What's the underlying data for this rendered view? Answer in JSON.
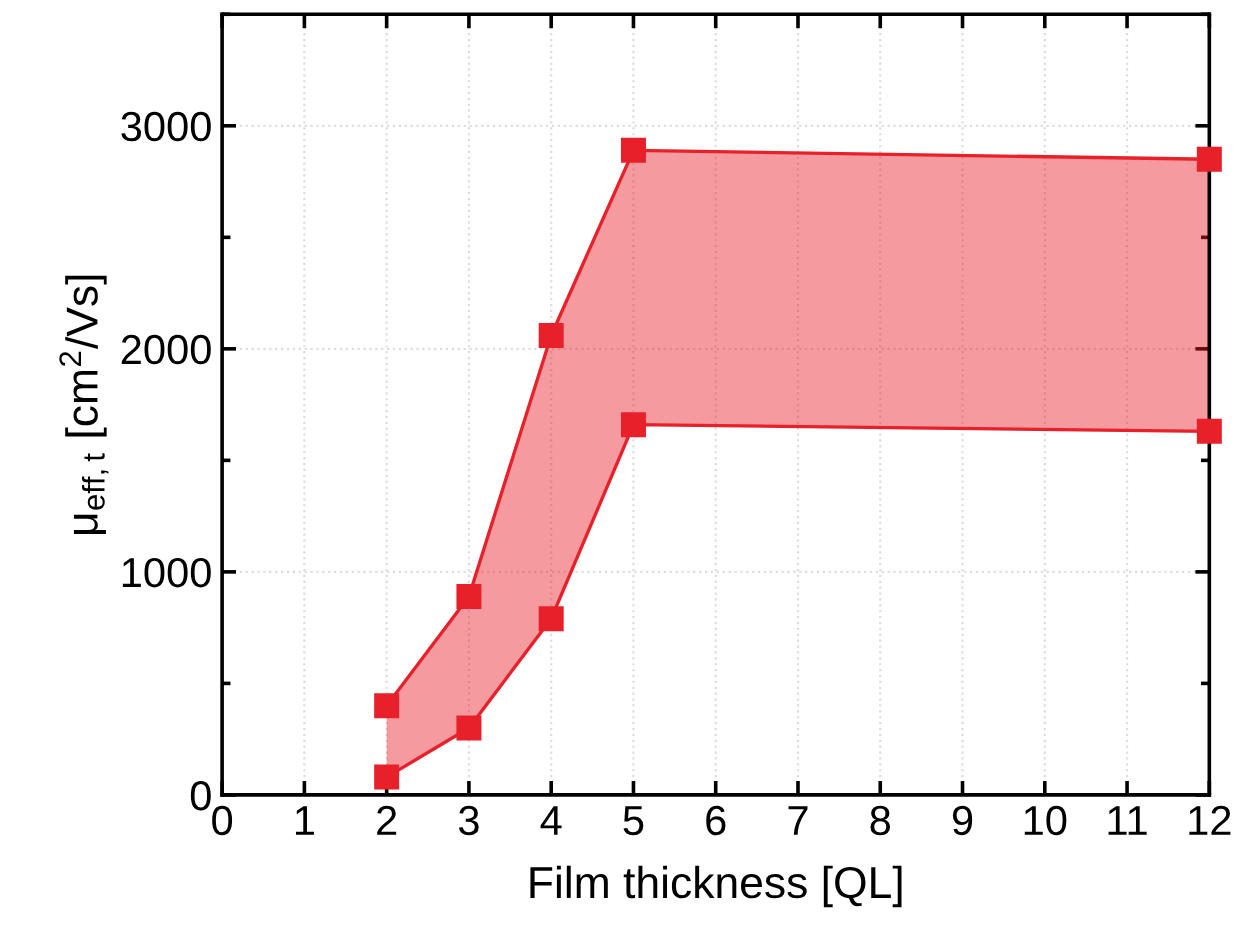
{
  "chart_data": {
    "type": "line",
    "xlabel": "Film thickness [QL]",
    "ylabel": "μ$_{eff,t}$ [cm$^{2}$/Vs]",
    "x": [
      2,
      3,
      4,
      5,
      12
    ],
    "series": [
      {
        "color": "#e8202a",
        "values": [
          400,
          890,
          2060,
          2890,
          2850
        ],
        "lower": [
          80,
          300,
          790,
          1660,
          1630
        ],
        "upper": [
          400,
          890,
          2060,
          2890,
          2850
        ]
      },
      {
        "color": "#e8202a",
        "values": [
          80,
          300,
          790,
          1660,
          1630
        ]
      }
    ],
    "xlim": [
      0,
      12
    ],
    "xticks": [
      0,
      1,
      2,
      3,
      4,
      5,
      6,
      7,
      8,
      9,
      10,
      11,
      12
    ],
    "ylim": [
      0,
      3500
    ],
    "yticks": [
      0,
      1000,
      2000,
      3000
    ],
    "grid": true,
    "marker": "square",
    "line_style": "solid"
  }
}
